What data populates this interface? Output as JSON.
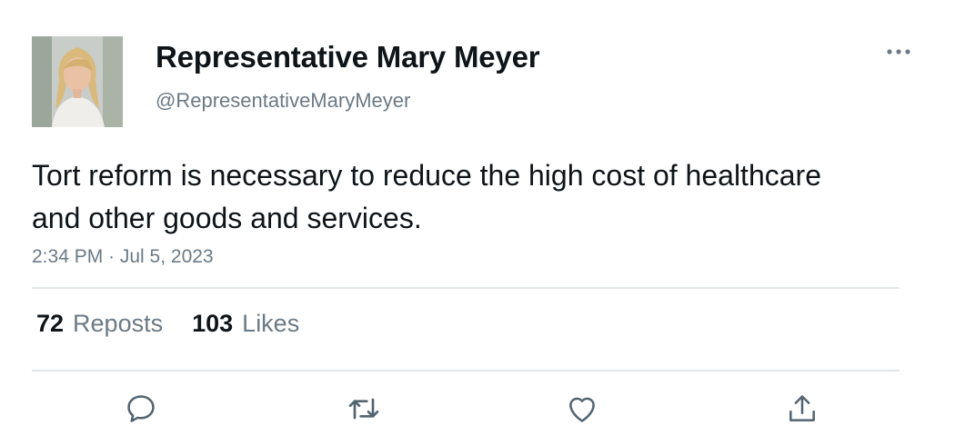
{
  "author": {
    "display_name": "Representative Mary Meyer",
    "handle": "@RepresentativeMaryMeyer"
  },
  "tweet": {
    "text": "Tort reform is necessary to reduce the high cost of healthcare and other goods and services.",
    "timestamp": "2:34 PM · Jul 5, 2023"
  },
  "stats": {
    "reposts_count": "72",
    "reposts_label": "Reposts",
    "likes_count": "103",
    "likes_label": "Likes"
  },
  "icons": {
    "more": "more-horizontal-icon",
    "reply": "reply-icon",
    "repost": "repost-icon",
    "like": "heart-icon",
    "share": "share-icon"
  },
  "colors": {
    "text_primary": "#0f1419",
    "text_secondary": "#6b7a86",
    "divider": "#e1e6ea"
  }
}
